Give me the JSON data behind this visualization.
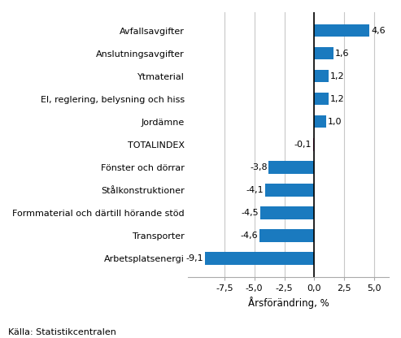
{
  "categories": [
    "Arbetsplatsenergi",
    "Transporter",
    "Formmaterial och därtill hörande stöd",
    "Stålkonstruktioner",
    "Fönster och dörrar",
    "TOTALINDEX",
    "Jordämne",
    "El, reglering, belysning och hiss",
    "Ytmaterial",
    "Anslutningsavgifter",
    "Avfallsavgifter"
  ],
  "values": [
    -9.1,
    -4.6,
    -4.5,
    -4.1,
    -3.8,
    -0.1,
    1.0,
    1.2,
    1.2,
    1.6,
    4.6
  ],
  "value_labels": [
    "-9,1",
    "-4,6",
    "-4,5",
    "-4,1",
    "-3,8",
    "-0,1",
    "1,0",
    "1,2",
    "1,2",
    "1,6",
    "4,6"
  ],
  "xlabel": "Årsförändring, %",
  "xlim": [
    -10.5,
    6.2
  ],
  "xticks": [
    -7.5,
    -5.0,
    -2.5,
    0.0,
    2.5,
    5.0
  ],
  "xticklabels": [
    "-7,5",
    "-5,0",
    "-2,5",
    "0,0",
    "2,5",
    "5,0"
  ],
  "source": "Källa: Statistikcentralen",
  "bar_color_main": "#1a7abf",
  "bar_color_total": "#c0006e",
  "label_fontsize": 8.0,
  "value_fontsize": 8.0,
  "xlabel_fontsize": 8.5,
  "source_fontsize": 8.0,
  "grid_color": "#c8c8c8",
  "bar_height": 0.55
}
